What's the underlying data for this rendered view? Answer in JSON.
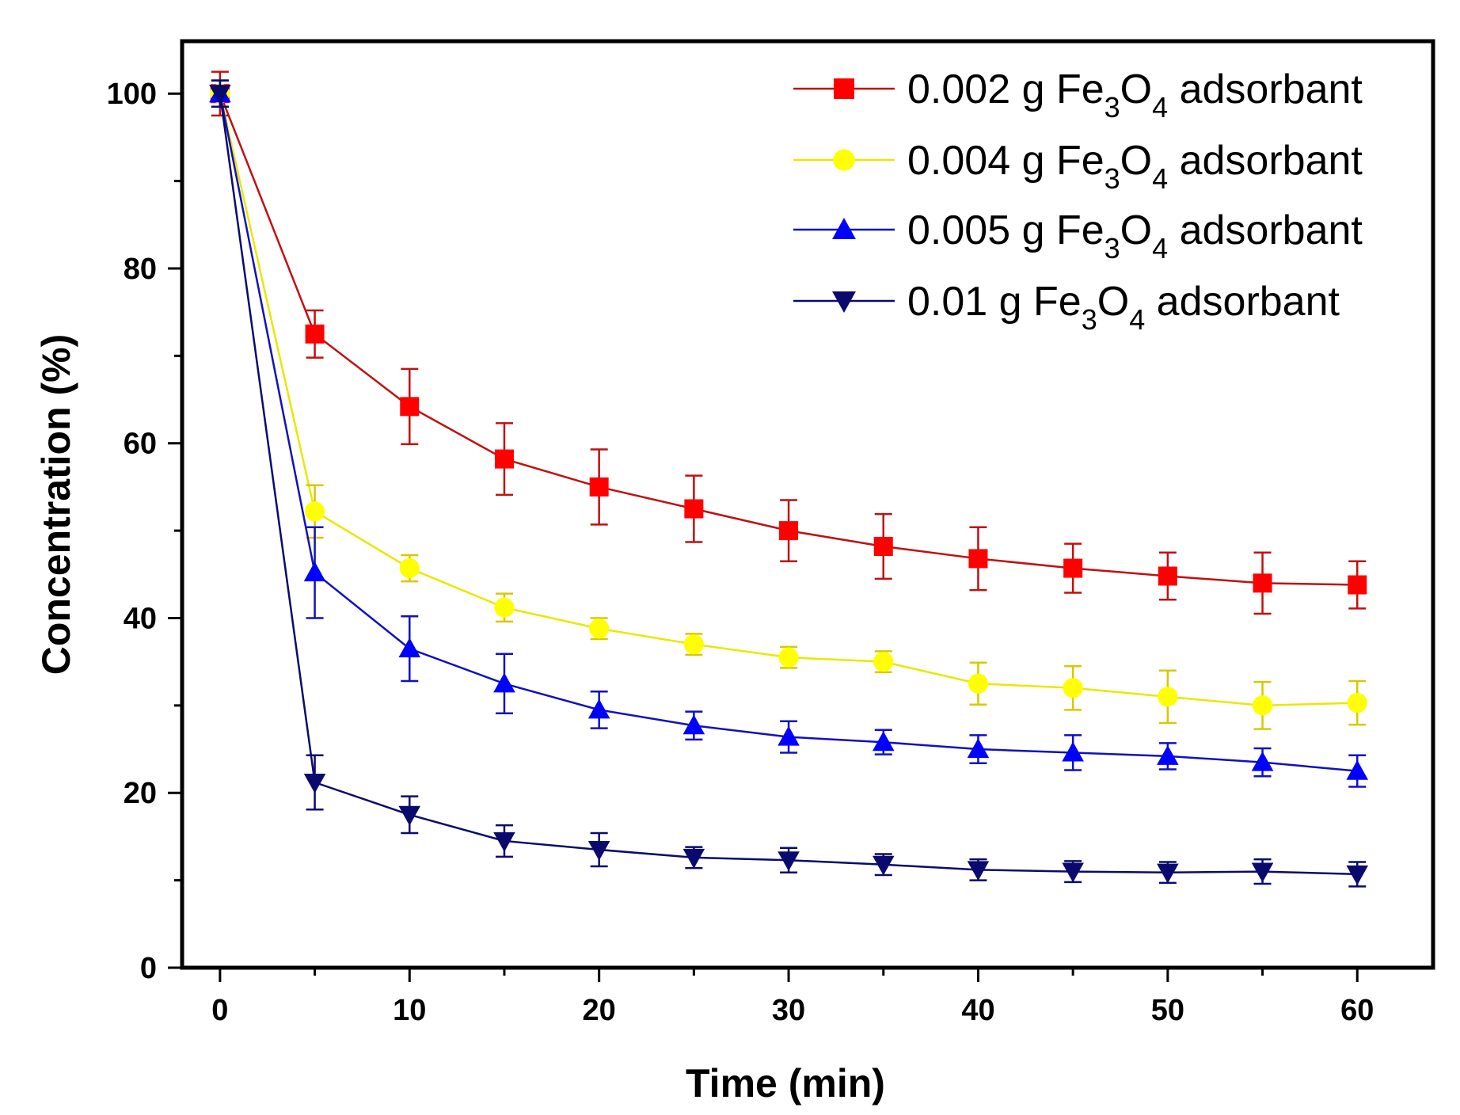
{
  "chart_data": {
    "type": "line",
    "title": "",
    "xlabel": "Time (min)",
    "ylabel": "Concentration (%)",
    "xlim": [
      -2,
      64
    ],
    "ylim": [
      0,
      106
    ],
    "xticks": [
      0,
      10,
      20,
      30,
      40,
      50,
      60
    ],
    "yticks": [
      0,
      20,
      40,
      60,
      80,
      100
    ],
    "grid": false,
    "legend_position": "top-right",
    "x": [
      0,
      5,
      10,
      15,
      20,
      25,
      30,
      35,
      40,
      45,
      50,
      55,
      60
    ],
    "series": [
      {
        "name": "0.002 g Fe3O4 adsorbant",
        "label_parts": [
          "0.002 g Fe",
          "3",
          "O",
          "4",
          " adsorbant"
        ],
        "marker": "square",
        "color": "#ff0000",
        "line_color": "#c01010",
        "values": [
          100,
          72.5,
          64.2,
          58.2,
          55.0,
          52.5,
          50.0,
          48.2,
          46.8,
          45.7,
          44.8,
          44.0,
          43.8
        ],
        "errors": [
          2.5,
          2.7,
          4.3,
          4.1,
          4.3,
          3.8,
          3.5,
          3.7,
          3.6,
          2.8,
          2.7,
          3.5,
          2.7
        ]
      },
      {
        "name": "0.004 g Fe3O4 adsorbant",
        "label_parts": [
          "0.004 g Fe",
          "3",
          "O",
          "4",
          " adsorbant"
        ],
        "marker": "circle",
        "color": "#ffff00",
        "line_color": "#e8e800",
        "values": [
          100,
          52.2,
          45.7,
          41.2,
          38.8,
          37.0,
          35.5,
          35.0,
          32.5,
          32.0,
          31.0,
          30.0,
          30.3
        ],
        "errors": [
          1.5,
          3.0,
          1.5,
          1.6,
          1.2,
          1.2,
          1.2,
          1.2,
          2.4,
          2.5,
          3.0,
          2.7,
          2.5
        ]
      },
      {
        "name": "0.005 g Fe3O4 adsorbant",
        "label_parts": [
          "0.005 g Fe",
          "3",
          "O",
          "4",
          " adsorbant"
        ],
        "marker": "triangle-up",
        "color": "#0000ff",
        "line_color": "#1010c0",
        "values": [
          100,
          45.2,
          36.5,
          32.5,
          29.5,
          27.7,
          26.4,
          25.8,
          25.0,
          24.6,
          24.2,
          23.5,
          22.5
        ],
        "errors": [
          1.5,
          5.2,
          3.7,
          3.4,
          2.1,
          1.6,
          1.8,
          1.4,
          1.6,
          2.0,
          1.5,
          1.6,
          1.8
        ]
      },
      {
        "name": "0.01 g Fe3O4 adsorbant",
        "label_parts": [
          "0.01 g Fe",
          "3",
          "O",
          "4",
          " adsorbant"
        ],
        "marker": "triangle-down",
        "color": "#0a0a6e",
        "line_color": "#0a0a6e",
        "values": [
          100,
          21.2,
          17.5,
          14.5,
          13.5,
          12.6,
          12.3,
          11.8,
          11.2,
          11.0,
          10.9,
          11.0,
          10.7
        ],
        "errors": [
          1.5,
          3.1,
          2.1,
          1.8,
          1.9,
          1.2,
          1.4,
          1.2,
          1.2,
          1.2,
          1.2,
          1.4,
          1.4
        ]
      }
    ]
  }
}
